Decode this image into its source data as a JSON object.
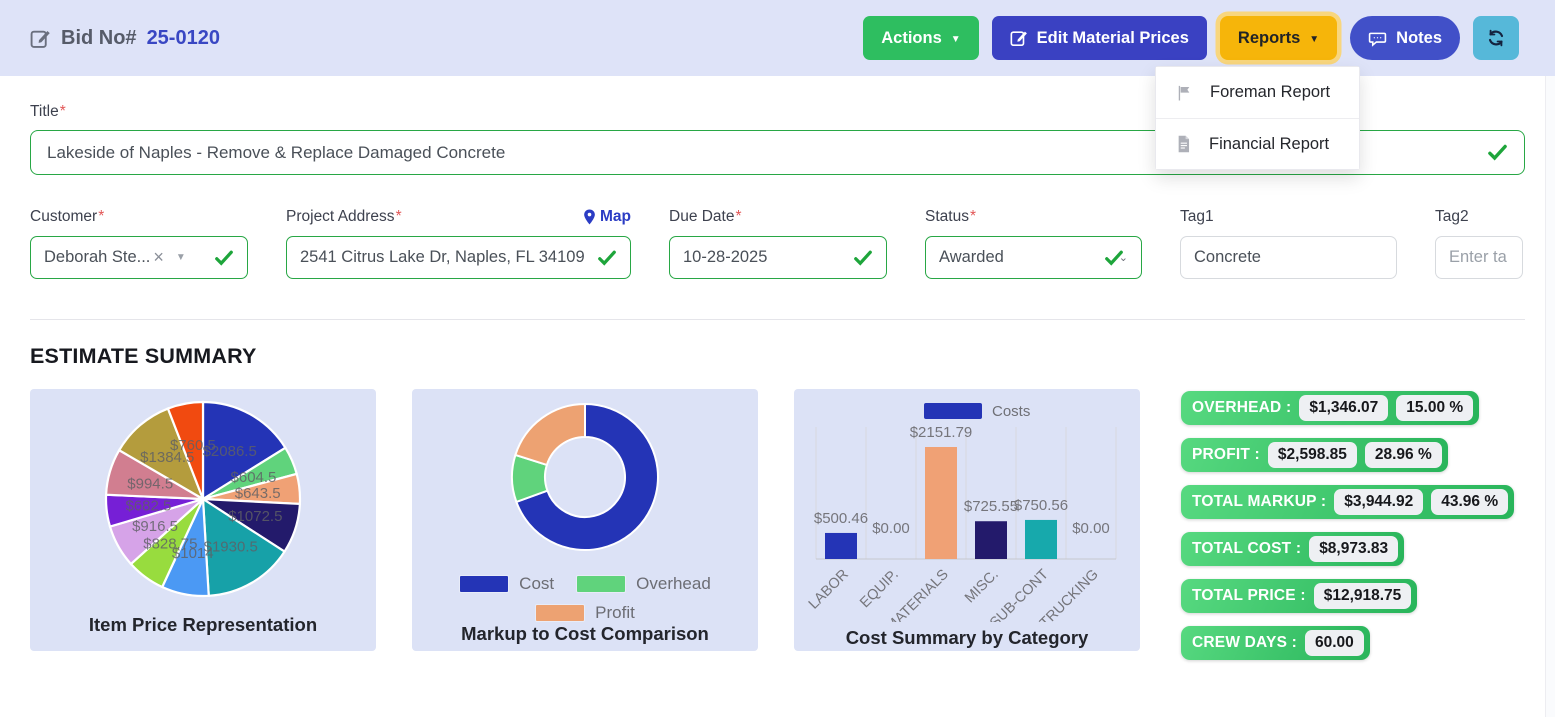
{
  "header": {
    "bid_label": "Bid No#",
    "bid_number": "25-0120",
    "actions_label": "Actions",
    "edit_material_prices_label": "Edit Material Prices",
    "reports_label": "Reports",
    "notes_label": "Notes"
  },
  "reports_menu": {
    "items": [
      {
        "label": "Foreman Report",
        "icon": "flag-icon"
      },
      {
        "label": "Financial Report",
        "icon": "file-icon"
      }
    ]
  },
  "form": {
    "required_mark": "*",
    "title": {
      "label": "Title",
      "value": "Lakeside of Naples - Remove & Replace Damaged Concrete"
    },
    "customer": {
      "label": "Customer",
      "value": "Deborah Ste..."
    },
    "project_address": {
      "label": "Project Address",
      "map_label": "Map",
      "value": "2541 Citrus Lake Dr, Naples, FL 34109"
    },
    "due_date": {
      "label": "Due Date",
      "value": "10-28-2025"
    },
    "status": {
      "label": "Status",
      "value": "Awarded"
    },
    "tag1": {
      "label": "Tag1",
      "value": "Concrete"
    },
    "tag2": {
      "label": "Tag2",
      "placeholder": "Enter ta"
    }
  },
  "estimate_summary": {
    "heading": "ESTIMATE SUMMARY",
    "badges": [
      {
        "label": "OVERHEAD :",
        "values": [
          "$1,346.07",
          "15.00 %"
        ]
      },
      {
        "label": "PROFIT :",
        "values": [
          "$2,598.85",
          "28.96 %"
        ]
      },
      {
        "label": "TOTAL MARKUP :",
        "values": [
          "$3,944.92",
          "43.96 %"
        ]
      },
      {
        "label": "TOTAL COST :",
        "values": [
          "$8,973.83"
        ]
      },
      {
        "label": "TOTAL PRICE :",
        "values": [
          "$12,918.75"
        ]
      },
      {
        "label": "CREW DAYS :",
        "values": [
          "60.00"
        ]
      }
    ]
  },
  "chart_data": [
    {
      "type": "pie",
      "title": "Item Price Representation",
      "labels": [
        "$2086.5",
        "$604.5",
        "$643.5",
        "$1072.5",
        "$1930.5",
        "$1014",
        "$828.75",
        "$916.5",
        "$682.5",
        "$994.5",
        "$1384.5",
        "$760.5"
      ],
      "values": [
        2086.5,
        604.5,
        643.5,
        1072.5,
        1930.5,
        1014,
        828.75,
        916.5,
        682.5,
        994.5,
        1384.5,
        760.5
      ],
      "colors": [
        "#2434b6",
        "#60d37c",
        "#f0a175",
        "#231a6b",
        "#17a1a8",
        "#4b99f4",
        "#98dc3e",
        "#d6a3e8",
        "#761fd6",
        "#d17e90",
        "#b49c3d",
        "#f14a10"
      ],
      "total": 12918.75,
      "start": "top-clockwise",
      "legend": "none"
    },
    {
      "type": "pie",
      "subtype": "donut",
      "title": "Markup to Cost Comparison",
      "segments": [
        {
          "name": "Cost",
          "value": 8973.83,
          "color": "#2434b6"
        },
        {
          "name": "Overhead",
          "value": 1346.07,
          "color": "#60d37c"
        },
        {
          "name": "Profit",
          "value": 2598.85,
          "color": "#eda272"
        }
      ],
      "legend_position": "bottom"
    },
    {
      "type": "bar",
      "title": "Cost Summary by Category",
      "categories": [
        "LABOR",
        "EQUIP.",
        "MATERIALS",
        "MISC.",
        "SUB-CONT",
        "TRUCKING"
      ],
      "values": [
        500.46,
        0.0,
        2151.79,
        725.55,
        750.56,
        0.0
      ],
      "value_labels": [
        "$500.46",
        "$0.00",
        "$2151.79",
        "$725.55",
        "$750.56",
        "$0.00"
      ],
      "bar_colors": [
        "#2434b6",
        "#2434b6",
        "#f0a175",
        "#231a6b",
        "#17a9ac",
        "#17a9ac"
      ],
      "ylim": [
        0,
        2151.79
      ],
      "grid": "vertical",
      "legend": [
        {
          "name": "Costs",
          "color": "#2434b6"
        }
      ],
      "legend_position": "top"
    }
  ],
  "theme": {
    "header_bg": "#dee3f8",
    "actions_green": "#2ebe60",
    "primary_indigo": "#3a41c2",
    "reports_amber": "#f6b50a",
    "notes_indigo": "#4150c8",
    "refresh_cyan": "#56b8d9",
    "valid_green": "#28a745",
    "badge_green_start": "#57d980",
    "badge_green_end": "#28b45a",
    "card_bg": "#dce2f6"
  }
}
